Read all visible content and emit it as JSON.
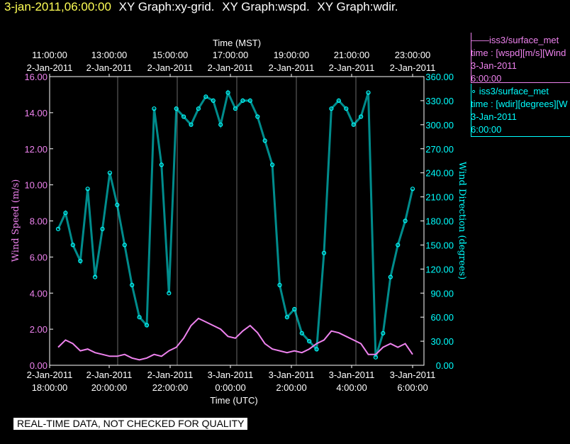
{
  "header": {
    "date": "3-jan-2011,06:00:00",
    "graph_labels": [
      "XY Graph:xy-grid.",
      "XY Graph:wspd.",
      "XY Graph:wdir."
    ]
  },
  "legend": [
    {
      "lines": [
        "——iss3/surface_met",
        "time : [wspd][m/s][Wind",
        "3-Jan-2011",
        "6:00:00"
      ],
      "color": "#ee82ee"
    },
    {
      "lines": [
        "  ∘ iss3/surface_met",
        "time : [wdir][degrees][W",
        "3-Jan-2011",
        "6:00:00"
      ],
      "color": "#00ffff"
    }
  ],
  "note": "REAL-TIME DATA, NOT CHECKED FOR QUALITY",
  "chart_data": {
    "type": "line",
    "top_axis": {
      "label": "Time (MST)",
      "ticks": [
        {
          "time": "11:00:00",
          "date": "2-Jan-2011"
        },
        {
          "time": "13:00:00",
          "date": "2-Jan-2011"
        },
        {
          "time": "15:00:00",
          "date": "2-Jan-2011"
        },
        {
          "time": "17:00:00",
          "date": "2-Jan-2011"
        },
        {
          "time": "19:00:00",
          "date": "2-Jan-2011"
        },
        {
          "time": "21:00:00",
          "date": "2-Jan-2011"
        },
        {
          "time": "23:00:00",
          "date": "2-Jan-2011"
        }
      ]
    },
    "bottom_axis": {
      "label": "Time (UTC)",
      "ticks": [
        {
          "date": "2-Jan-2011",
          "time": "18:00:00"
        },
        {
          "date": "2-Jan-2011",
          "time": "20:00:00"
        },
        {
          "date": "2-Jan-2011",
          "time": "22:00:00"
        },
        {
          "date": "3-Jan-2011",
          "time": "0:00:00"
        },
        {
          "date": "3-Jan-2011",
          "time": "2:00:00"
        },
        {
          "date": "3-Jan-2011",
          "time": "4:00:00"
        },
        {
          "date": "3-Jan-2011",
          "time": "6:00:00"
        }
      ]
    },
    "xlim_utc_hours": [
      0,
      12
    ],
    "x_unit": "hours after 2-Jan-2011 18:00:00 UTC",
    "left_axis": {
      "label": "Wind Speed (m/s)",
      "color": "#ee82ee",
      "ylim": [
        0,
        16
      ],
      "ticks": [
        "0.00",
        "2.00",
        "4.00",
        "6.00",
        "8.00",
        "10.00",
        "12.00",
        "14.00",
        "16.00"
      ]
    },
    "right_axis": {
      "label": "Wind Direction (degrees)",
      "color": "#00ffff",
      "ylim": [
        0,
        360
      ],
      "ticks": [
        "0.00",
        "30.00",
        "60.00",
        "90.00",
        "120.00",
        "150.00",
        "180.00",
        "210.00",
        "240.00",
        "270.00",
        "300.00",
        "330.00",
        "360.00"
      ]
    },
    "grid": true,
    "series": [
      {
        "name": "wspd",
        "style": "line",
        "color": "#ee82ee",
        "axis": "left",
        "x": [
          0,
          0.25,
          0.5,
          0.75,
          1,
          1.25,
          1.5,
          1.75,
          2,
          2.25,
          2.5,
          2.75,
          3,
          3.25,
          3.5,
          3.75,
          4,
          4.25,
          4.5,
          4.75,
          5,
          5.25,
          5.5,
          5.75,
          6,
          6.25,
          6.5,
          6.75,
          7,
          7.25,
          7.5,
          7.75,
          8,
          8.25,
          8.5,
          8.75,
          9,
          9.25,
          9.5,
          9.75,
          10,
          10.25,
          10.5,
          10.75,
          11,
          11.25,
          11.5,
          11.75,
          12
        ],
        "y": [
          1.0,
          1.4,
          1.2,
          0.8,
          0.9,
          0.7,
          0.6,
          0.5,
          0.5,
          0.6,
          0.4,
          0.3,
          0.4,
          0.6,
          0.5,
          0.8,
          1.0,
          1.5,
          2.2,
          2.6,
          2.4,
          2.2,
          2.0,
          1.6,
          1.5,
          1.9,
          2.2,
          1.8,
          1.2,
          0.9,
          0.8,
          0.7,
          0.8,
          0.7,
          0.9,
          1.2,
          1.4,
          1.9,
          1.8,
          1.6,
          1.4,
          1.2,
          0.6,
          0.6,
          1.0,
          1.2,
          1.0,
          1.2,
          0.6
        ]
      },
      {
        "name": "wdir",
        "style": "points",
        "color": "#00ffff",
        "axis": "right",
        "x": [
          0,
          0.25,
          0.5,
          0.75,
          1,
          1.25,
          1.5,
          1.75,
          2,
          2.25,
          2.5,
          2.75,
          3,
          3.25,
          3.5,
          3.75,
          4,
          4.25,
          4.5,
          4.75,
          5,
          5.25,
          5.5,
          5.75,
          6,
          6.25,
          6.5,
          6.75,
          7,
          7.25,
          7.5,
          7.75,
          8,
          8.25,
          8.5,
          8.75,
          9,
          9.25,
          9.5,
          9.75,
          10,
          10.25,
          10.5,
          10.75,
          11,
          11.25,
          11.5,
          11.75,
          12
        ],
        "y": [
          170,
          190,
          150,
          130,
          220,
          110,
          170,
          240,
          200,
          150,
          100,
          60,
          50,
          320,
          250,
          90,
          320,
          310,
          300,
          320,
          335,
          330,
          300,
          340,
          320,
          330,
          330,
          310,
          280,
          250,
          100,
          60,
          70,
          40,
          30,
          20,
          140,
          320,
          330,
          320,
          300,
          310,
          340,
          10,
          40,
          110,
          150,
          180,
          220
        ]
      }
    ]
  }
}
